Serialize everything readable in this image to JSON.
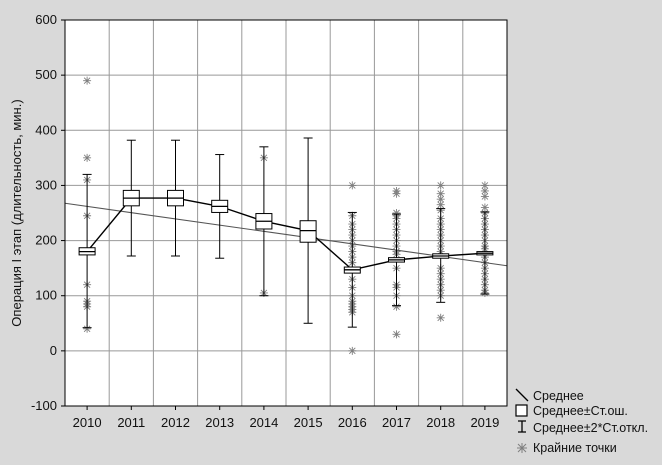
{
  "chart_data": {
    "type": "box",
    "title": "",
    "xlabel": "",
    "ylabel": "Операция I этап (длительность, мин.)",
    "ylim": [
      -100,
      600
    ],
    "yticks": [
      -100,
      0,
      100,
      200,
      300,
      400,
      500,
      600
    ],
    "grid": true,
    "legend_position": "bottom-right",
    "categories": [
      "2010",
      "2011",
      "2012",
      "2013",
      "2014",
      "2015",
      "2016",
      "2017",
      "2018",
      "2019"
    ],
    "series": [
      {
        "category": "2010",
        "mean": 180,
        "se_low": 174,
        "se_high": 187,
        "sd2_low": 42,
        "sd2_high": 320,
        "outliers": [
          490,
          350,
          310,
          245,
          120,
          90,
          85,
          80,
          40
        ]
      },
      {
        "category": "2011",
        "mean": 277,
        "se_low": 263,
        "se_high": 291,
        "sd2_low": 172,
        "sd2_high": 382,
        "outliers": []
      },
      {
        "category": "2012",
        "mean": 277,
        "se_low": 263,
        "se_high": 291,
        "sd2_low": 172,
        "sd2_high": 382,
        "outliers": []
      },
      {
        "category": "2013",
        "mean": 262,
        "se_low": 251,
        "se_high": 273,
        "sd2_low": 168,
        "sd2_high": 356,
        "outliers": []
      },
      {
        "category": "2014",
        "mean": 235,
        "se_low": 221,
        "se_high": 249,
        "sd2_low": 100,
        "sd2_high": 370,
        "outliers": [
          350,
          105
        ]
      },
      {
        "category": "2015",
        "mean": 218,
        "se_low": 197,
        "se_high": 236,
        "sd2_low": 50,
        "sd2_high": 386,
        "outliers": []
      },
      {
        "category": "2016",
        "mean": 147,
        "se_low": 141,
        "se_high": 152,
        "sd2_low": 43,
        "sd2_high": 251,
        "outliers": [
          300,
          245,
          230,
          220,
          210,
          200,
          190,
          180,
          170,
          160,
          130,
          115,
          100,
          90,
          85,
          80,
          75,
          70,
          0
        ]
      },
      {
        "category": "2017",
        "mean": 165,
        "se_low": 161,
        "se_high": 169,
        "sd2_low": 82,
        "sd2_high": 248,
        "outliers": [
          290,
          285,
          250,
          245,
          240,
          230,
          220,
          210,
          200,
          190,
          180,
          175,
          150,
          120,
          115,
          100,
          80,
          30
        ]
      },
      {
        "category": "2018",
        "mean": 172,
        "se_low": 168,
        "se_high": 176,
        "sd2_low": 88,
        "sd2_high": 258,
        "outliers": [
          300,
          285,
          275,
          265,
          255,
          240,
          230,
          220,
          210,
          200,
          190,
          180,
          150,
          140,
          130,
          120,
          110,
          100,
          60
        ]
      },
      {
        "category": "2019",
        "mean": 177,
        "se_low": 174,
        "se_high": 180,
        "sd2_low": 103,
        "sd2_high": 252,
        "outliers": [
          300,
          290,
          280,
          260,
          250,
          240,
          230,
          220,
          210,
          200,
          190,
          185,
          170,
          160,
          150,
          140,
          130,
          120,
          110,
          105
        ]
      }
    ],
    "trendline": {
      "x_start": "2010",
      "y_start": 262,
      "x_end": "2019",
      "y_end": 160
    },
    "legend": [
      {
        "symbol": "mean",
        "label": "Среднее"
      },
      {
        "symbol": "se-box",
        "label": "Среднее±Ст.ош."
      },
      {
        "symbol": "whisker",
        "label": "Среднее±2*Ст.откл."
      },
      {
        "symbol": "outlier",
        "label": "Крайние точки"
      }
    ],
    "colors": {
      "background": "#d9d9d9",
      "plot_area": "#ffffff",
      "grid": "#999999",
      "box_fill": "#ffffff",
      "stroke": "#000000",
      "outlier": "#7f7f7f",
      "trend": "#555555"
    }
  }
}
